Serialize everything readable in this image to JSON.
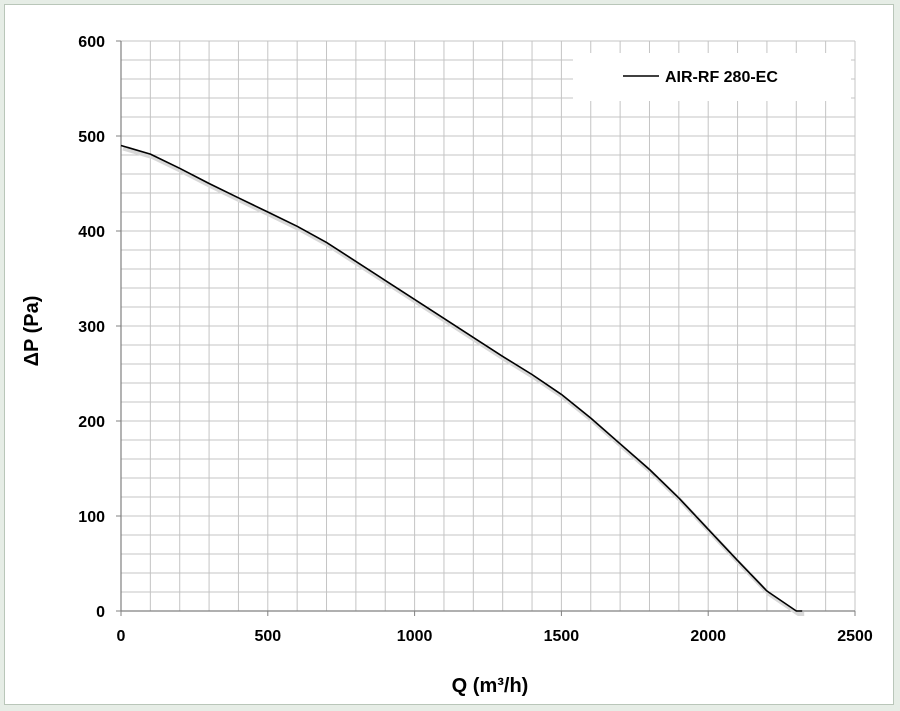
{
  "chart_data": {
    "type": "line",
    "title": "",
    "xlabel": "Q (m³/h)",
    "ylabel": "ΔP (Pa)",
    "xlim": [
      0,
      2500
    ],
    "ylim": [
      0,
      600
    ],
    "x_ticks": [
      0,
      500,
      1000,
      1500,
      2000,
      2500
    ],
    "y_ticks": [
      0,
      100,
      200,
      300,
      400,
      500,
      600
    ],
    "x_minor_step": 100,
    "y_minor_step": 20,
    "grid": true,
    "legend_position": "top-right",
    "series": [
      {
        "name": "AIR-RF 280-EC",
        "color": "#000000",
        "x": [
          0,
          100,
          200,
          300,
          400,
          500,
          600,
          700,
          800,
          900,
          1000,
          1100,
          1200,
          1300,
          1400,
          1500,
          1600,
          1700,
          1800,
          1900,
          2000,
          2100,
          2200,
          2300,
          2320
        ],
        "y": [
          490,
          481,
          466,
          450,
          435,
          420,
          405,
          388,
          368,
          348,
          328,
          308,
          288,
          268,
          249,
          228,
          203,
          176,
          149,
          119,
          86,
          53,
          21,
          0,
          0
        ]
      }
    ]
  }
}
